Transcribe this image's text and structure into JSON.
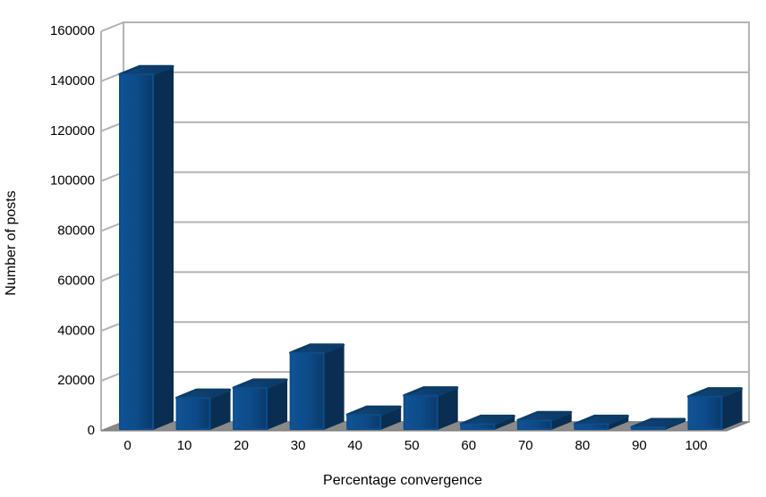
{
  "chart_data": {
    "type": "bar",
    "style": "3d-oblique",
    "title": "",
    "xlabel": "Percentage convergence",
    "ylabel": "Number of posts",
    "categories": [
      "0",
      "10",
      "20",
      "30",
      "40",
      "50",
      "60",
      "70",
      "80",
      "90",
      "100"
    ],
    "values": [
      142000,
      12500,
      16500,
      30500,
      5700,
      13400,
      2000,
      3500,
      2000,
      700,
      13000
    ],
    "ylim": [
      0,
      160000
    ],
    "ytick_step": 20000,
    "ytick_labels": [
      "0",
      "20000",
      "40000",
      "60000",
      "80000",
      "100000",
      "120000",
      "140000",
      "160000"
    ],
    "grid": true,
    "legend": false,
    "colors": {
      "bar_front": "#0d4d8c",
      "bar_front_light": "#105394",
      "bar_front_dark": "#0a3a69",
      "bar_top": "#0c3c68",
      "bar_top_light": "#12477c",
      "bar_side": "#092e52",
      "wall_line": "#b3b3b3",
      "floor": "#8a8a8a",
      "floor_edge": "#7a7a7a",
      "background": "#ffffff",
      "text": "#000000"
    }
  }
}
